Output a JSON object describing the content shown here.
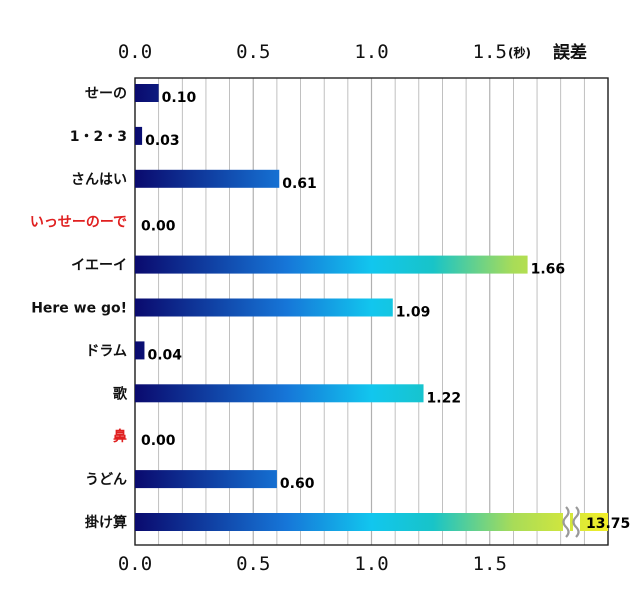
{
  "chart_data": {
    "type": "bar",
    "orientation": "horizontal",
    "unit_short": "(秒)",
    "unit_label": "誤差",
    "xlim": [
      0,
      2.0
    ],
    "x_ticks": [
      "0.0",
      "0.5",
      "1.0",
      "1.5"
    ],
    "grid": true,
    "categories": [
      "せーの",
      "1・2・3",
      "さんはい",
      "いっせーのーで",
      "イエーイ",
      "Here we go!",
      "ドラム",
      "歌",
      "鼻",
      "うどん",
      "掛け算"
    ],
    "values": [
      0.1,
      0.03,
      0.61,
      0.0,
      1.66,
      1.09,
      0.04,
      1.22,
      0.0,
      0.6,
      13.75
    ],
    "value_labels": [
      "0.10",
      "0.03",
      "0.61",
      "0.00",
      "1.66",
      "1.09",
      "0.04",
      "1.22",
      "0.00",
      "0.60",
      "13.75"
    ],
    "highlighted_categories": [
      "いっせーのーで",
      "鼻"
    ],
    "axis_break_category": "掛け算",
    "colors": {
      "gradient": [
        "#0a0a6e",
        "#1676d8",
        "#12c6ee",
        "#18c4c8",
        "#a8dc58",
        "#f2ee28"
      ],
      "highlight": "#e02020",
      "text": "#111111",
      "grid": "#b0b0b0",
      "break_mark": "#9a9a9a"
    }
  }
}
